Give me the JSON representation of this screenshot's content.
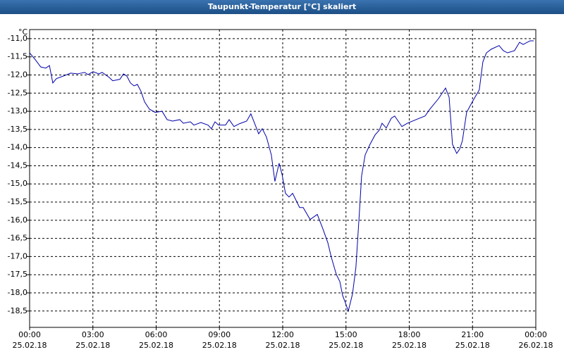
{
  "chart_data": {
    "type": "line",
    "title": "Taupunkt-Temperatur [°C] skaliert",
    "y_unit": "°C",
    "grid": true,
    "xlim": [
      0,
      24
    ],
    "ylim": [
      -18.95,
      -10.75
    ],
    "xticks": [
      {
        "value": 0,
        "label": "00:00",
        "date": "25.02.18"
      },
      {
        "value": 3,
        "label": "03:00",
        "date": "25.02.18"
      },
      {
        "value": 6,
        "label": "06:00",
        "date": "25.02.18"
      },
      {
        "value": 9,
        "label": "09:00",
        "date": "25.02.18"
      },
      {
        "value": 12,
        "label": "12:00",
        "date": "25.02.18"
      },
      {
        "value": 15,
        "label": "15:00",
        "date": "25.02.18"
      },
      {
        "value": 18,
        "label": "18:00",
        "date": "25.02.18"
      },
      {
        "value": 21,
        "label": "21:00",
        "date": "25.02.18"
      },
      {
        "value": 24,
        "label": "00:00",
        "date": "26.02.18"
      }
    ],
    "yticks": [
      {
        "value": -11,
        "label": "-11,0"
      },
      {
        "value": -11.5,
        "label": "-11,5"
      },
      {
        "value": -12,
        "label": "-12,0"
      },
      {
        "value": -12.5,
        "label": "-12,5"
      },
      {
        "value": -13,
        "label": "-13,0"
      },
      {
        "value": -13.5,
        "label": "-13,5"
      },
      {
        "value": -14,
        "label": "-14,0"
      },
      {
        "value": -14.5,
        "label": "-14,5"
      },
      {
        "value": -15,
        "label": "-15,0"
      },
      {
        "value": -15.5,
        "label": "-15,5"
      },
      {
        "value": -16,
        "label": "-16,0"
      },
      {
        "value": -16.5,
        "label": "-16,5"
      },
      {
        "value": -17,
        "label": "-17,0"
      },
      {
        "value": -17.5,
        "label": "-17,5"
      },
      {
        "value": -18,
        "label": "-18,0"
      },
      {
        "value": -18.5,
        "label": "-18,5"
      }
    ],
    "color": "#0000a8",
    "x": [
      0.0,
      0.27,
      0.53,
      0.77,
      0.94,
      1.1,
      1.27,
      1.6,
      1.94,
      2.27,
      2.61,
      2.77,
      3.01,
      3.28,
      3.44,
      3.78,
      3.94,
      4.28,
      4.45,
      4.61,
      4.78,
      4.95,
      5.11,
      5.28,
      5.45,
      5.68,
      5.95,
      6.28,
      6.52,
      6.78,
      7.12,
      7.29,
      7.62,
      7.79,
      8.12,
      8.46,
      8.62,
      8.79,
      8.96,
      9.29,
      9.46,
      9.69,
      9.96,
      10.29,
      10.49,
      10.7,
      10.86,
      11.03,
      11.23,
      11.46,
      11.63,
      11.83,
      11.97,
      12.13,
      12.3,
      12.47,
      12.8,
      12.97,
      13.3,
      13.64,
      13.9,
      14.14,
      14.3,
      14.54,
      14.71,
      14.84,
      14.97,
      15.11,
      15.31,
      15.47,
      15.64,
      15.74,
      15.91,
      16.14,
      16.38,
      16.58,
      16.71,
      16.91,
      17.15,
      17.31,
      17.65,
      17.91,
      18.32,
      18.75,
      18.98,
      19.39,
      19.72,
      19.89,
      20.05,
      20.25,
      20.39,
      20.52,
      20.72,
      20.99,
      21.32,
      21.49,
      21.66,
      21.89,
      22.26,
      22.46,
      22.66,
      22.99,
      23.23,
      23.4,
      23.73,
      23.9
    ],
    "values": [
      -11.39,
      -11.58,
      -11.78,
      -11.81,
      -11.74,
      -12.22,
      -12.1,
      -12.03,
      -11.95,
      -11.97,
      -11.93,
      -11.99,
      -11.91,
      -11.97,
      -11.93,
      -12.07,
      -12.16,
      -12.12,
      -11.97,
      -12.03,
      -12.22,
      -12.3,
      -12.26,
      -12.45,
      -12.74,
      -12.94,
      -13.03,
      -13.0,
      -13.23,
      -13.27,
      -13.23,
      -13.33,
      -13.29,
      -13.38,
      -13.31,
      -13.38,
      -13.48,
      -13.29,
      -13.38,
      -13.38,
      -13.23,
      -13.42,
      -13.34,
      -13.27,
      -13.07,
      -13.38,
      -13.62,
      -13.48,
      -13.71,
      -14.2,
      -14.93,
      -14.43,
      -14.74,
      -15.26,
      -15.36,
      -15.26,
      -15.65,
      -15.65,
      -15.98,
      -15.84,
      -16.23,
      -16.62,
      -17.01,
      -17.49,
      -17.69,
      -18.07,
      -18.27,
      -18.5,
      -18.03,
      -17.3,
      -15.75,
      -14.78,
      -14.2,
      -13.91,
      -13.65,
      -13.52,
      -13.33,
      -13.46,
      -13.19,
      -13.13,
      -13.42,
      -13.33,
      -13.23,
      -13.13,
      -12.94,
      -12.65,
      -12.36,
      -12.61,
      -13.91,
      -14.16,
      -14.04,
      -13.81,
      -13.03,
      -12.74,
      -12.41,
      -11.64,
      -11.39,
      -11.29,
      -11.19,
      -11.33,
      -11.39,
      -11.33,
      -11.1,
      -11.16,
      -11.06,
      -11.06
    ]
  }
}
